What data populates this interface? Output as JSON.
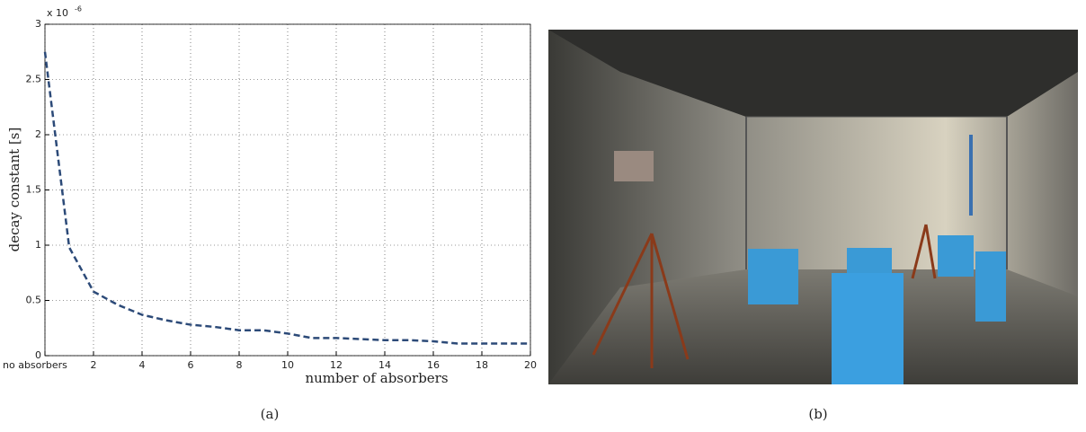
{
  "chart_data": {
    "type": "line",
    "x_label": "number of absorbers",
    "y_label": "decay constant [s]",
    "y_scale_label": "x 10",
    "y_scale_exponent": "-6",
    "x": [
      0,
      1,
      2,
      3,
      4,
      5,
      6,
      7,
      8,
      9,
      10,
      11,
      12,
      13,
      14,
      15,
      16,
      17,
      18,
      19,
      20
    ],
    "series": [
      {
        "color": "#2c4a78",
        "values": [
          2.75,
          0.98,
          0.58,
          0.46,
          0.37,
          0.32,
          0.28,
          0.26,
          0.23,
          0.23,
          0.2,
          0.16,
          0.16,
          0.15,
          0.14,
          0.14,
          0.13,
          0.11,
          0.11,
          0.11,
          0.11
        ]
      }
    ],
    "xlim": [
      0,
      20
    ],
    "ylim": [
      0,
      3
    ],
    "xticks": [
      {
        "value": 0,
        "label": "no absorbers"
      },
      2,
      4,
      6,
      8,
      10,
      12,
      14,
      16,
      18,
      20
    ],
    "yticks": [
      0,
      0.5,
      1,
      1.5,
      2,
      2.5,
      3
    ],
    "grid": true
  },
  "captions": [
    "(a)",
    "(b)"
  ]
}
